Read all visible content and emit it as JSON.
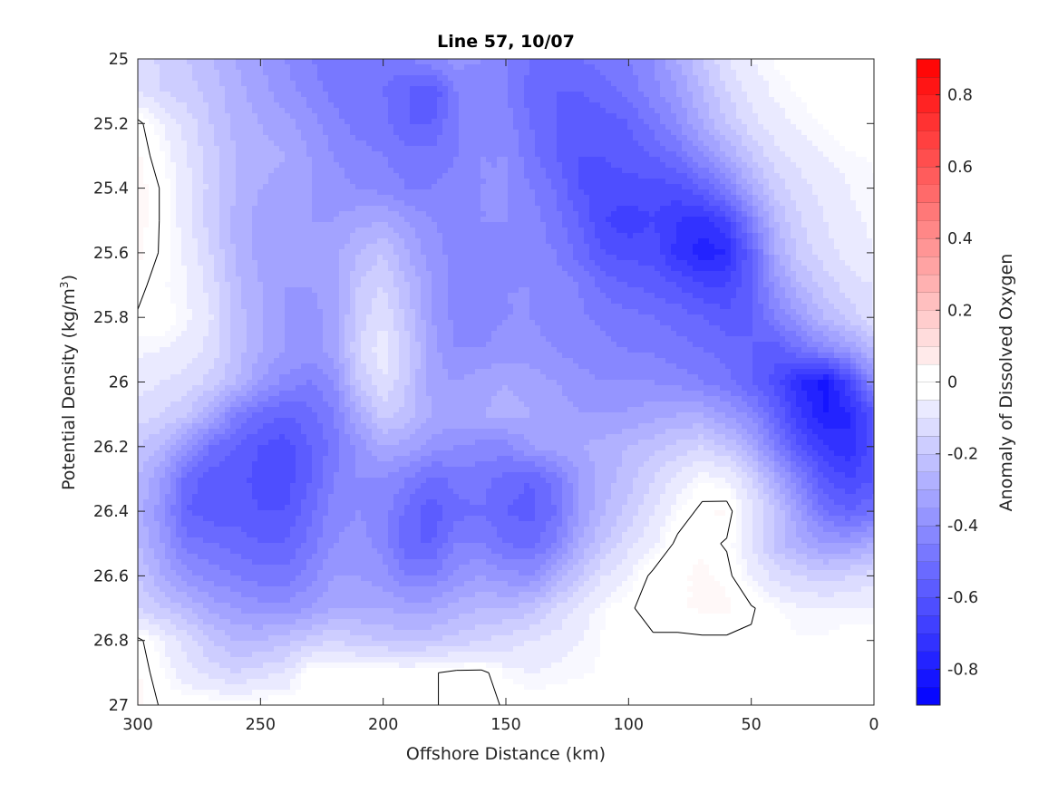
{
  "chart_data": {
    "type": "heatmap",
    "subtype": "filled-contour",
    "title": "Line 57, 10/07",
    "xlabel": "Offshore Distance (km)",
    "ylabel_main": "Potential Density (kg/m",
    "ylabel_sup": "3",
    "ylabel_end": ")",
    "colorbar_label": "Anomaly of Dissolved Oxygen",
    "xlim": [
      300,
      0
    ],
    "x_reversed": true,
    "ylim": [
      25,
      27
    ],
    "y_reversed": true,
    "clim": [
      -0.9,
      0.9
    ],
    "contour_step": 0.05,
    "colormap": "blue-white-red",
    "zero_contour_color": "#000000",
    "x_ticks": [
      300,
      250,
      200,
      150,
      100,
      50,
      0
    ],
    "x_tick_labels": [
      "300",
      "250",
      "200",
      "150",
      "100",
      "50",
      "0"
    ],
    "y_ticks": [
      25,
      25.2,
      25.4,
      25.6,
      25.8,
      26,
      26.2,
      26.4,
      26.6,
      26.8,
      27
    ],
    "y_tick_labels": [
      "25",
      "25.2",
      "25.4",
      "25.6",
      "25.8",
      "26",
      "26.2",
      "26.4",
      "26.6",
      "26.8",
      "27"
    ],
    "colorbar_ticks": [
      0.8,
      0.6,
      0.4,
      0.2,
      0,
      -0.2,
      -0.4,
      -0.6,
      -0.8
    ],
    "colorbar_tick_labels": [
      "0.8",
      "0.6",
      "0.4",
      "0.2",
      "0",
      "-0.2",
      "-0.4",
      "-0.6",
      "-0.8"
    ],
    "x_grid": [
      300,
      290,
      280,
      270,
      260,
      250,
      240,
      230,
      220,
      210,
      200,
      190,
      180,
      170,
      160,
      150,
      140,
      130,
      120,
      110,
      100,
      90,
      80,
      70,
      60,
      50,
      40,
      30,
      20,
      10,
      0
    ],
    "y_grid": [
      25.0,
      25.1,
      25.2,
      25.3,
      25.4,
      25.5,
      25.6,
      25.7,
      25.8,
      25.9,
      26.0,
      26.1,
      26.2,
      26.3,
      26.4,
      26.5,
      26.6,
      26.7,
      26.8,
      26.9,
      27.0
    ],
    "z_grid": [
      [
        -0.12,
        -0.16,
        -0.2,
        -0.25,
        -0.3,
        -0.35,
        -0.4,
        -0.45,
        -0.48,
        -0.5,
        -0.48,
        -0.45,
        -0.4,
        -0.38,
        -0.4,
        -0.45,
        -0.5,
        -0.52,
        -0.5,
        -0.48,
        -0.45,
        -0.4,
        -0.3,
        -0.2,
        -0.1,
        -0.05,
        -0.02,
        0,
        0,
        0,
        0
      ],
      [
        -0.1,
        -0.15,
        -0.18,
        -0.22,
        -0.28,
        -0.33,
        -0.38,
        -0.42,
        -0.47,
        -0.5,
        -0.5,
        -0.55,
        -0.6,
        -0.45,
        -0.42,
        -0.45,
        -0.52,
        -0.55,
        -0.55,
        -0.52,
        -0.48,
        -0.42,
        -0.35,
        -0.25,
        -0.15,
        -0.08,
        -0.04,
        -0.02,
        0,
        0,
        0
      ],
      [
        0.02,
        -0.05,
        -0.12,
        -0.2,
        -0.27,
        -0.3,
        -0.33,
        -0.38,
        -0.43,
        -0.47,
        -0.48,
        -0.55,
        -0.55,
        -0.45,
        -0.4,
        -0.42,
        -0.5,
        -0.55,
        -0.58,
        -0.58,
        -0.55,
        -0.48,
        -0.4,
        -0.3,
        -0.2,
        -0.12,
        -0.07,
        -0.04,
        -0.02,
        0,
        0
      ],
      [
        0.03,
        -0.02,
        -0.1,
        -0.18,
        -0.25,
        -0.28,
        -0.3,
        -0.35,
        -0.4,
        -0.43,
        -0.45,
        -0.48,
        -0.48,
        -0.45,
        -0.4,
        -0.4,
        -0.48,
        -0.55,
        -0.6,
        -0.6,
        -0.58,
        -0.55,
        -0.5,
        -0.4,
        -0.3,
        -0.2,
        -0.12,
        -0.08,
        -0.05,
        -0.03,
        -0.02
      ],
      [
        0.04,
        0,
        -0.08,
        -0.17,
        -0.25,
        -0.3,
        -0.32,
        -0.35,
        -0.38,
        -0.4,
        -0.42,
        -0.45,
        -0.45,
        -0.43,
        -0.4,
        -0.4,
        -0.45,
        -0.5,
        -0.6,
        -0.62,
        -0.62,
        -0.62,
        -0.62,
        -0.55,
        -0.45,
        -0.3,
        -0.18,
        -0.12,
        -0.08,
        -0.05,
        -0.03
      ],
      [
        0.04,
        0,
        -0.08,
        -0.18,
        -0.27,
        -0.32,
        -0.35,
        -0.35,
        -0.35,
        -0.32,
        -0.3,
        -0.35,
        -0.4,
        -0.42,
        -0.4,
        -0.4,
        -0.42,
        -0.48,
        -0.55,
        -0.65,
        -0.68,
        -0.65,
        -0.7,
        -0.72,
        -0.65,
        -0.45,
        -0.25,
        -0.15,
        -0.1,
        -0.06,
        -0.04
      ],
      [
        0.03,
        0,
        -0.06,
        -0.15,
        -0.26,
        -0.32,
        -0.35,
        -0.35,
        -0.32,
        -0.25,
        -0.2,
        -0.3,
        -0.38,
        -0.42,
        -0.42,
        -0.4,
        -0.42,
        -0.45,
        -0.52,
        -0.6,
        -0.62,
        -0.62,
        -0.72,
        -0.78,
        -0.75,
        -0.55,
        -0.3,
        -0.18,
        -0.12,
        -0.08,
        -0.05
      ],
      [
        0.02,
        -0.02,
        -0.05,
        -0.12,
        -0.24,
        -0.3,
        -0.35,
        -0.35,
        -0.33,
        -0.2,
        -0.15,
        -0.25,
        -0.35,
        -0.42,
        -0.42,
        -0.4,
        -0.4,
        -0.42,
        -0.45,
        -0.52,
        -0.55,
        -0.57,
        -0.6,
        -0.65,
        -0.65,
        -0.55,
        -0.38,
        -0.25,
        -0.18,
        -0.12,
        -0.1
      ],
      [
        0,
        0,
        -0.04,
        -0.1,
        -0.22,
        -0.3,
        -0.35,
        -0.37,
        -0.33,
        -0.18,
        -0.1,
        -0.22,
        -0.35,
        -0.42,
        -0.42,
        -0.4,
        -0.4,
        -0.42,
        -0.44,
        -0.46,
        -0.48,
        -0.5,
        -0.52,
        -0.55,
        -0.58,
        -0.55,
        -0.45,
        -0.35,
        -0.25,
        -0.18,
        -0.1
      ],
      [
        -0.04,
        -0.05,
        -0.07,
        -0.12,
        -0.22,
        -0.3,
        -0.35,
        -0.37,
        -0.33,
        -0.15,
        -0.07,
        -0.18,
        -0.33,
        -0.4,
        -0.4,
        -0.38,
        -0.38,
        -0.4,
        -0.42,
        -0.44,
        -0.45,
        -0.46,
        -0.48,
        -0.5,
        -0.52,
        -0.55,
        -0.58,
        -0.5,
        -0.42,
        -0.35,
        -0.25
      ],
      [
        -0.08,
        -0.1,
        -0.12,
        -0.17,
        -0.25,
        -0.35,
        -0.42,
        -0.45,
        -0.4,
        -0.2,
        -0.1,
        -0.2,
        -0.33,
        -0.35,
        -0.32,
        -0.3,
        -0.32,
        -0.35,
        -0.38,
        -0.4,
        -0.4,
        -0.4,
        -0.42,
        -0.45,
        -0.48,
        -0.55,
        -0.62,
        -0.75,
        -0.82,
        -0.65,
        -0.4
      ],
      [
        -0.12,
        -0.15,
        -0.2,
        -0.3,
        -0.45,
        -0.52,
        -0.55,
        -0.52,
        -0.45,
        -0.3,
        -0.18,
        -0.22,
        -0.3,
        -0.32,
        -0.3,
        -0.28,
        -0.3,
        -0.32,
        -0.35,
        -0.35,
        -0.34,
        -0.32,
        -0.3,
        -0.3,
        -0.35,
        -0.42,
        -0.55,
        -0.7,
        -0.8,
        -0.75,
        -0.6
      ],
      [
        -0.2,
        -0.25,
        -0.38,
        -0.5,
        -0.55,
        -0.6,
        -0.63,
        -0.55,
        -0.48,
        -0.38,
        -0.3,
        -0.32,
        -0.38,
        -0.4,
        -0.42,
        -0.42,
        -0.35,
        -0.32,
        -0.3,
        -0.28,
        -0.25,
        -0.22,
        -0.18,
        -0.15,
        -0.2,
        -0.3,
        -0.45,
        -0.6,
        -0.7,
        -0.75,
        -0.6
      ],
      [
        -0.25,
        -0.35,
        -0.52,
        -0.58,
        -0.58,
        -0.62,
        -0.63,
        -0.55,
        -0.45,
        -0.4,
        -0.4,
        -0.45,
        -0.52,
        -0.48,
        -0.48,
        -0.52,
        -0.55,
        -0.48,
        -0.35,
        -0.28,
        -0.22,
        -0.15,
        -0.08,
        -0.03,
        -0.05,
        -0.15,
        -0.3,
        -0.45,
        -0.6,
        -0.65,
        -0.6
      ],
      [
        -0.28,
        -0.38,
        -0.55,
        -0.58,
        -0.58,
        -0.6,
        -0.6,
        -0.52,
        -0.42,
        -0.4,
        -0.42,
        -0.52,
        -0.58,
        -0.52,
        -0.5,
        -0.55,
        -0.57,
        -0.5,
        -0.35,
        -0.25,
        -0.18,
        -0.1,
        -0.03,
        0.02,
        0.03,
        -0.08,
        -0.2,
        -0.35,
        -0.5,
        -0.55,
        -0.5
      ],
      [
        -0.25,
        -0.35,
        -0.48,
        -0.5,
        -0.52,
        -0.55,
        -0.55,
        -0.48,
        -0.4,
        -0.38,
        -0.42,
        -0.55,
        -0.55,
        -0.45,
        -0.45,
        -0.5,
        -0.52,
        -0.45,
        -0.3,
        -0.2,
        -0.12,
        -0.06,
        0.02,
        0.02,
        0,
        -0.1,
        -0.22,
        -0.3,
        -0.35,
        -0.35,
        -0.3
      ],
      [
        -0.2,
        -0.3,
        -0.38,
        -0.42,
        -0.45,
        -0.48,
        -0.48,
        -0.42,
        -0.35,
        -0.35,
        -0.38,
        -0.45,
        -0.45,
        -0.38,
        -0.35,
        -0.38,
        -0.4,
        -0.3,
        -0.2,
        -0.1,
        -0.05,
        0.02,
        0.02,
        0.03,
        0.02,
        -0.05,
        -0.12,
        -0.15,
        -0.18,
        -0.15,
        -0.12
      ],
      [
        -0.15,
        -0.2,
        -0.25,
        -0.32,
        -0.35,
        -0.38,
        -0.38,
        -0.35,
        -0.3,
        -0.3,
        -0.3,
        -0.32,
        -0.32,
        -0.28,
        -0.25,
        -0.25,
        -0.22,
        -0.15,
        -0.08,
        -0.03,
        0,
        0.02,
        0.02,
        0.03,
        0.03,
        0.01,
        -0.02,
        -0.05,
        -0.05,
        -0.05,
        -0.05
      ],
      [
        0.02,
        -0.05,
        -0.12,
        -0.2,
        -0.25,
        -0.25,
        -0.22,
        -0.18,
        -0.15,
        -0.18,
        -0.2,
        -0.22,
        -0.2,
        -0.18,
        -0.15,
        -0.13,
        -0.1,
        -0.08,
        -0.05,
        -0.02,
        0,
        0,
        0,
        0,
        0,
        0,
        0,
        -0.02,
        -0.02,
        0,
        0
      ],
      [
        0.03,
        -0.02,
        -0.08,
        -0.12,
        -0.15,
        -0.12,
        -0.1,
        0,
        0,
        0,
        0,
        0,
        0,
        0.02,
        0.02,
        -0.03,
        -0.05,
        -0.04,
        -0.03,
        -0.02,
        -0.02,
        -0.02,
        -0.02,
        0,
        0,
        0,
        0,
        0,
        0,
        0,
        0
      ],
      [
        0.03,
        0,
        0,
        0,
        0,
        0,
        0,
        0,
        0,
        0,
        0,
        0,
        0,
        0.02,
        0.02,
        0,
        0,
        0,
        0,
        0,
        0,
        0,
        0,
        0,
        0,
        0,
        0,
        0,
        0,
        0,
        0
      ]
    ]
  }
}
